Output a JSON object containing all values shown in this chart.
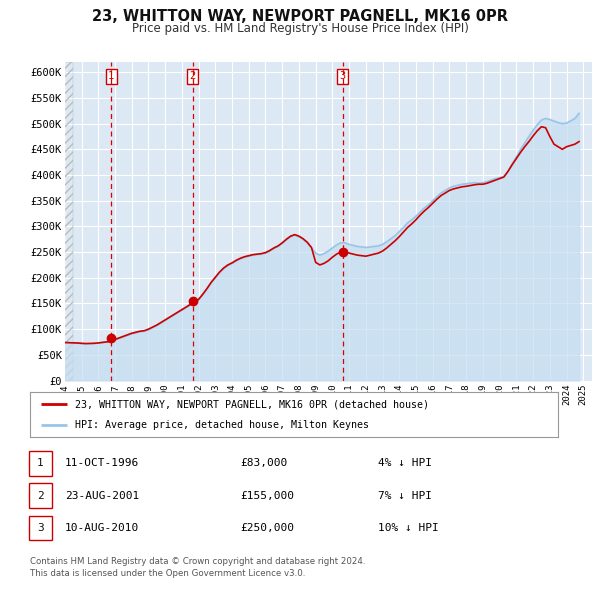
{
  "title": "23, WHITTON WAY, NEWPORT PAGNELL, MK16 0PR",
  "subtitle": "Price paid vs. HM Land Registry's House Price Index (HPI)",
  "bg_color": "#ffffff",
  "plot_bg_color": "#dce9f5",
  "grid_color": "#ffffff",
  "hatch_color": "#cccccc",
  "ylim": [
    0,
    620000
  ],
  "yticks": [
    0,
    50000,
    100000,
    150000,
    200000,
    250000,
    300000,
    350000,
    400000,
    450000,
    500000,
    550000,
    600000
  ],
  "ytick_labels": [
    "£0",
    "£50K",
    "£100K",
    "£150K",
    "£200K",
    "£250K",
    "£300K",
    "£350K",
    "£400K",
    "£450K",
    "£500K",
    "£550K",
    "£600K"
  ],
  "sale_color": "#cc0000",
  "hpi_color": "#99c4e8",
  "hpi_fill_color": "#c5ddf0",
  "vline_color": "#dd0000",
  "sale_label": "23, WHITTON WAY, NEWPORT PAGNELL, MK16 0PR (detached house)",
  "hpi_label": "HPI: Average price, detached house, Milton Keynes",
  "transactions": [
    {
      "num": 1,
      "date_label": "11-OCT-1996",
      "year": 1996.78,
      "price": 83000,
      "pct": "4%",
      "dir": "↓"
    },
    {
      "num": 2,
      "date_label": "23-AUG-2001",
      "year": 2001.64,
      "price": 155000,
      "pct": "7%",
      "dir": "↓"
    },
    {
      "num": 3,
      "date_label": "10-AUG-2010",
      "year": 2010.61,
      "price": 250000,
      "pct": "10%",
      "dir": "↓"
    }
  ],
  "footnote1": "Contains HM Land Registry data © Crown copyright and database right 2024.",
  "footnote2": "This data is licensed under the Open Government Licence v3.0.",
  "hpi_data": [
    [
      1994.0,
      74000
    ],
    [
      1994.25,
      73500
    ],
    [
      1994.5,
      73200
    ],
    [
      1994.75,
      73000
    ],
    [
      1995.0,
      72000
    ],
    [
      1995.25,
      71500
    ],
    [
      1995.5,
      71800
    ],
    [
      1995.75,
      72000
    ],
    [
      1996.0,
      73000
    ],
    [
      1996.25,
      74000
    ],
    [
      1996.5,
      75000
    ],
    [
      1996.75,
      76000
    ],
    [
      1997.0,
      79000
    ],
    [
      1997.25,
      82000
    ],
    [
      1997.5,
      85000
    ],
    [
      1997.75,
      88000
    ],
    [
      1998.0,
      91000
    ],
    [
      1998.25,
      93000
    ],
    [
      1998.5,
      95000
    ],
    [
      1998.75,
      96000
    ],
    [
      1999.0,
      99000
    ],
    [
      1999.25,
      103000
    ],
    [
      1999.5,
      107000
    ],
    [
      1999.75,
      112000
    ],
    [
      2000.0,
      117000
    ],
    [
      2000.25,
      122000
    ],
    [
      2000.5,
      127000
    ],
    [
      2000.75,
      132000
    ],
    [
      2001.0,
      137000
    ],
    [
      2001.25,
      142000
    ],
    [
      2001.5,
      147000
    ],
    [
      2001.75,
      151000
    ],
    [
      2002.0,
      157000
    ],
    [
      2002.25,
      167000
    ],
    [
      2002.5,
      178000
    ],
    [
      2002.75,
      190000
    ],
    [
      2003.0,
      200000
    ],
    [
      2003.25,
      210000
    ],
    [
      2003.5,
      218000
    ],
    [
      2003.75,
      224000
    ],
    [
      2004.0,
      228000
    ],
    [
      2004.25,
      233000
    ],
    [
      2004.5,
      237000
    ],
    [
      2004.75,
      240000
    ],
    [
      2005.0,
      242000
    ],
    [
      2005.25,
      244000
    ],
    [
      2005.5,
      245000
    ],
    [
      2005.75,
      246000
    ],
    [
      2006.0,
      248000
    ],
    [
      2006.25,
      252000
    ],
    [
      2006.5,
      257000
    ],
    [
      2006.75,
      261000
    ],
    [
      2007.0,
      267000
    ],
    [
      2007.25,
      274000
    ],
    [
      2007.5,
      280000
    ],
    [
      2007.75,
      283000
    ],
    [
      2008.0,
      280000
    ],
    [
      2008.25,
      275000
    ],
    [
      2008.5,
      268000
    ],
    [
      2008.75,
      258000
    ],
    [
      2009.0,
      248000
    ],
    [
      2009.25,
      244000
    ],
    [
      2009.5,
      247000
    ],
    [
      2009.75,
      252000
    ],
    [
      2010.0,
      258000
    ],
    [
      2010.25,
      264000
    ],
    [
      2010.5,
      268000
    ],
    [
      2010.75,
      268000
    ],
    [
      2011.0,
      265000
    ],
    [
      2011.25,
      263000
    ],
    [
      2011.5,
      261000
    ],
    [
      2011.75,
      260000
    ],
    [
      2012.0,
      259000
    ],
    [
      2012.25,
      260000
    ],
    [
      2012.5,
      261000
    ],
    [
      2012.75,
      262000
    ],
    [
      2013.0,
      265000
    ],
    [
      2013.25,
      270000
    ],
    [
      2013.5,
      276000
    ],
    [
      2013.75,
      282000
    ],
    [
      2014.0,
      290000
    ],
    [
      2014.25,
      298000
    ],
    [
      2014.5,
      307000
    ],
    [
      2014.75,
      313000
    ],
    [
      2015.0,
      320000
    ],
    [
      2015.25,
      328000
    ],
    [
      2015.5,
      336000
    ],
    [
      2015.75,
      342000
    ],
    [
      2016.0,
      350000
    ],
    [
      2016.25,
      358000
    ],
    [
      2016.5,
      365000
    ],
    [
      2016.75,
      370000
    ],
    [
      2017.0,
      375000
    ],
    [
      2017.25,
      378000
    ],
    [
      2017.5,
      380000
    ],
    [
      2017.75,
      382000
    ],
    [
      2018.0,
      383000
    ],
    [
      2018.25,
      384000
    ],
    [
      2018.5,
      385000
    ],
    [
      2018.75,
      384000
    ],
    [
      2019.0,
      385000
    ],
    [
      2019.25,
      387000
    ],
    [
      2019.5,
      390000
    ],
    [
      2019.75,
      393000
    ],
    [
      2020.0,
      395000
    ],
    [
      2020.25,
      397000
    ],
    [
      2020.5,
      407000
    ],
    [
      2020.75,
      422000
    ],
    [
      2021.0,
      435000
    ],
    [
      2021.25,
      450000
    ],
    [
      2021.5,
      462000
    ],
    [
      2021.75,
      475000
    ],
    [
      2022.0,
      487000
    ],
    [
      2022.25,
      498000
    ],
    [
      2022.5,
      507000
    ],
    [
      2022.75,
      510000
    ],
    [
      2023.0,
      508000
    ],
    [
      2023.25,
      505000
    ],
    [
      2023.5,
      502000
    ],
    [
      2023.75,
      500000
    ],
    [
      2024.0,
      501000
    ],
    [
      2024.5,
      510000
    ],
    [
      2024.75,
      520000
    ]
  ],
  "sale_data": [
    [
      1994.0,
      74000
    ],
    [
      1994.25,
      73700
    ],
    [
      1994.5,
      73400
    ],
    [
      1994.75,
      73100
    ],
    [
      1995.0,
      72500
    ],
    [
      1995.25,
      72000
    ],
    [
      1995.5,
      72200
    ],
    [
      1995.75,
      72500
    ],
    [
      1996.0,
      73200
    ],
    [
      1996.25,
      74200
    ],
    [
      1996.5,
      75200
    ],
    [
      1996.75,
      76200
    ],
    [
      1996.78,
      83000
    ],
    [
      1997.0,
      80000
    ],
    [
      1997.25,
      83000
    ],
    [
      1997.5,
      86000
    ],
    [
      1997.75,
      89000
    ],
    [
      1998.0,
      92000
    ],
    [
      1998.25,
      94000
    ],
    [
      1998.5,
      96000
    ],
    [
      1998.75,
      97000
    ],
    [
      1999.0,
      100000
    ],
    [
      1999.25,
      104000
    ],
    [
      1999.5,
      108000
    ],
    [
      1999.75,
      113000
    ],
    [
      2000.0,
      118000
    ],
    [
      2000.25,
      123000
    ],
    [
      2000.5,
      128000
    ],
    [
      2000.75,
      133000
    ],
    [
      2001.0,
      138000
    ],
    [
      2001.25,
      143000
    ],
    [
      2001.5,
      148000
    ],
    [
      2001.64,
      155000
    ],
    [
      2001.75,
      153000
    ],
    [
      2002.0,
      158000
    ],
    [
      2002.25,
      168000
    ],
    [
      2002.5,
      179000
    ],
    [
      2002.75,
      191000
    ],
    [
      2003.0,
      201000
    ],
    [
      2003.25,
      211000
    ],
    [
      2003.5,
      219000
    ],
    [
      2003.75,
      225000
    ],
    [
      2004.0,
      229000
    ],
    [
      2004.25,
      234000
    ],
    [
      2004.5,
      238000
    ],
    [
      2004.75,
      241000
    ],
    [
      2005.0,
      243000
    ],
    [
      2005.25,
      245000
    ],
    [
      2005.5,
      246000
    ],
    [
      2005.75,
      247000
    ],
    [
      2006.0,
      249000
    ],
    [
      2006.25,
      253000
    ],
    [
      2006.5,
      258000
    ],
    [
      2006.75,
      262000
    ],
    [
      2007.0,
      268000
    ],
    [
      2007.25,
      275000
    ],
    [
      2007.5,
      281000
    ],
    [
      2007.75,
      284000
    ],
    [
      2008.0,
      281000
    ],
    [
      2008.25,
      276000
    ],
    [
      2008.5,
      269000
    ],
    [
      2008.75,
      259000
    ],
    [
      2009.0,
      230000
    ],
    [
      2009.25,
      225000
    ],
    [
      2009.5,
      228000
    ],
    [
      2009.75,
      233000
    ],
    [
      2010.0,
      240000
    ],
    [
      2010.25,
      246000
    ],
    [
      2010.5,
      250000
    ],
    [
      2010.61,
      250000
    ],
    [
      2010.75,
      250000
    ],
    [
      2011.0,
      248000
    ],
    [
      2011.25,
      246000
    ],
    [
      2011.5,
      244000
    ],
    [
      2011.75,
      243000
    ],
    [
      2012.0,
      242000
    ],
    [
      2012.25,
      244000
    ],
    [
      2012.5,
      246000
    ],
    [
      2012.75,
      248000
    ],
    [
      2013.0,
      252000
    ],
    [
      2013.25,
      258000
    ],
    [
      2013.5,
      265000
    ],
    [
      2013.75,
      272000
    ],
    [
      2014.0,
      280000
    ],
    [
      2014.25,
      289000
    ],
    [
      2014.5,
      298000
    ],
    [
      2014.75,
      305000
    ],
    [
      2015.0,
      313000
    ],
    [
      2015.25,
      322000
    ],
    [
      2015.5,
      330000
    ],
    [
      2015.75,
      337000
    ],
    [
      2016.0,
      345000
    ],
    [
      2016.25,
      353000
    ],
    [
      2016.5,
      360000
    ],
    [
      2016.75,
      365000
    ],
    [
      2017.0,
      370000
    ],
    [
      2017.25,
      373000
    ],
    [
      2017.5,
      375000
    ],
    [
      2017.75,
      377000
    ],
    [
      2018.0,
      378000
    ],
    [
      2018.25,
      379500
    ],
    [
      2018.5,
      381000
    ],
    [
      2018.75,
      382000
    ],
    [
      2019.0,
      382000
    ],
    [
      2019.25,
      384000
    ],
    [
      2019.5,
      387000
    ],
    [
      2019.75,
      390000
    ],
    [
      2020.0,
      393000
    ],
    [
      2020.25,
      396000
    ],
    [
      2020.5,
      407000
    ],
    [
      2020.75,
      420000
    ],
    [
      2021.0,
      432000
    ],
    [
      2021.25,
      444000
    ],
    [
      2021.5,
      455000
    ],
    [
      2021.75,
      465000
    ],
    [
      2022.0,
      476000
    ],
    [
      2022.25,
      486000
    ],
    [
      2022.5,
      494000
    ],
    [
      2022.75,
      492000
    ],
    [
      2023.0,
      475000
    ],
    [
      2023.25,
      460000
    ],
    [
      2023.5,
      455000
    ],
    [
      2023.75,
      450000
    ],
    [
      2024.0,
      455000
    ],
    [
      2024.5,
      460000
    ],
    [
      2024.75,
      465000
    ]
  ]
}
